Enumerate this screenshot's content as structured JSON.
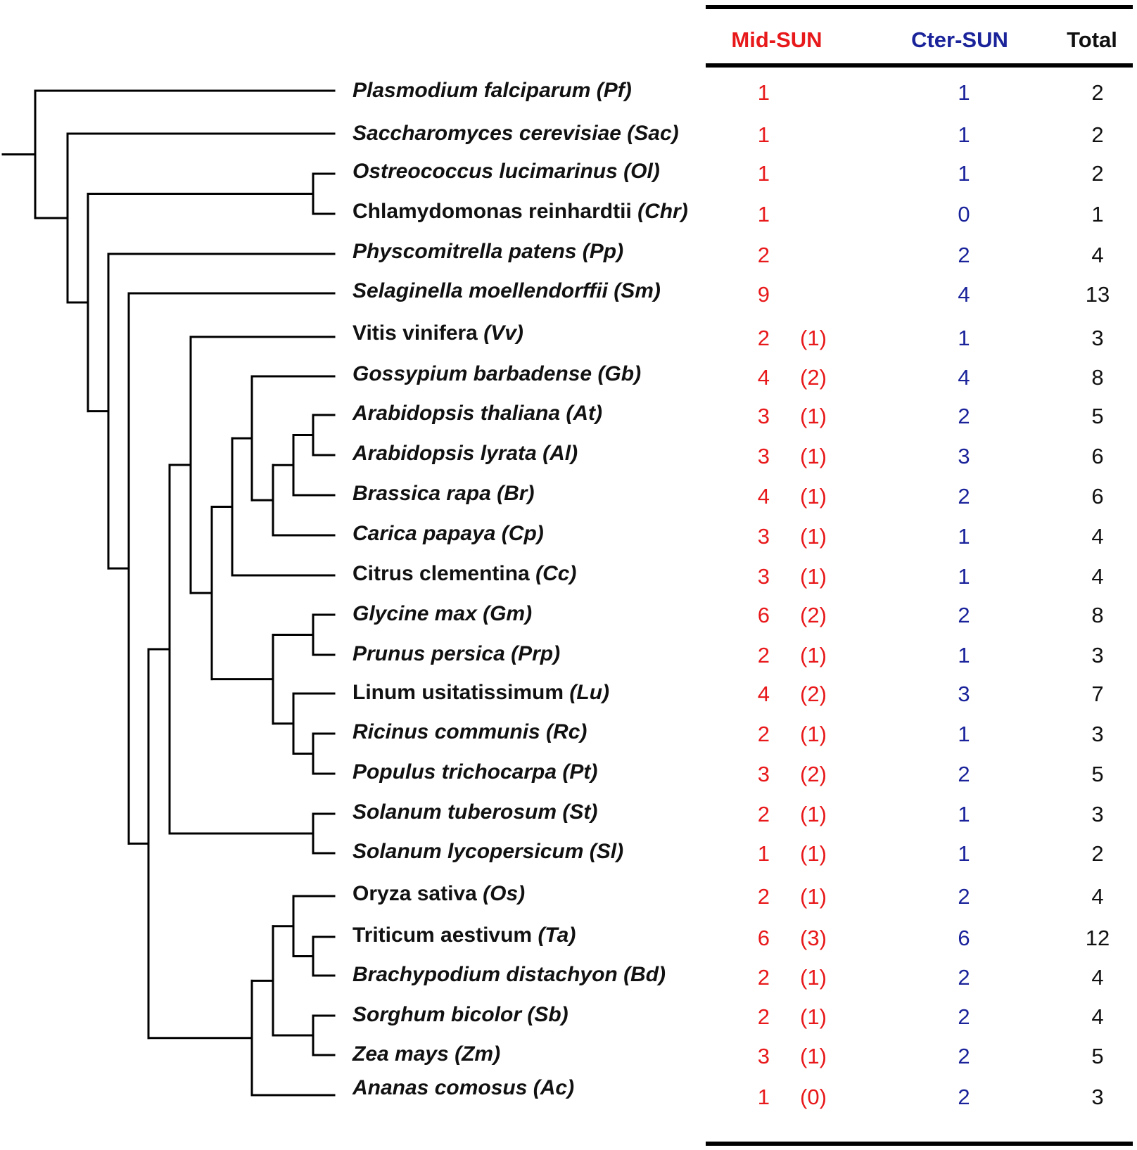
{
  "colors": {
    "mid": "#e8191b",
    "cter": "#1a239a",
    "total": "#111111",
    "tree": "#000000"
  },
  "table": {
    "headers": {
      "mid": "Mid-SUN",
      "cter": "Cter-SUN",
      "total": "Total"
    }
  },
  "rows": [
    {
      "italic": "Plasmodium falciparum (Pf)",
      "mid": "1",
      "cter": "1",
      "total": "2"
    },
    {
      "italic": "Saccharomyces cerevisiae (Sac)",
      "mid": "1",
      "cter": "1",
      "total": "2"
    },
    {
      "italic": "Ostreococcus lucimarinus  (Ol)",
      "mid": "1",
      "cter": "1",
      "total": "2"
    },
    {
      "plain": "Chlamydomonas reinhardtii",
      "italic": "(Chr)",
      "mid": "1",
      "cter": "0",
      "total": "1"
    },
    {
      "italic": "Physcomitrella patens (Pp)",
      "mid": "2",
      "cter": "2",
      "total": "4"
    },
    {
      "italic": "Selaginella moellendorffii (Sm)",
      "mid": "9",
      "cter": "4",
      "total": "13"
    },
    {
      "plain": "Vitis vinifera",
      "italic": "(Vv)",
      "mid": "2（1）",
      "cter": "1",
      "total": "3"
    },
    {
      "italic": "Gossypium barbadense  (Gb)",
      "mid": "4（2）",
      "cter": "4",
      "total": "8"
    },
    {
      "italic": "Arabidopsis thaliana  (At)",
      "mid": "3（1）",
      "cter": "2",
      "total": "5"
    },
    {
      "italic": "Arabidopsis lyrata (Al)",
      "mid": "3（1）",
      "cter": "3",
      "total": "6"
    },
    {
      "italic": "Brassica rapa (Br)",
      "mid": "4（1）",
      "cter": "2",
      "total": "6"
    },
    {
      "italic": "Carica papaya (Cp)",
      "mid": "3（1）",
      "cter": "1",
      "total": "4"
    },
    {
      "plain": "Citrus clementina",
      "italic": "(Cc)",
      "mid": "3（1）",
      "cter": "1",
      "total": "4"
    },
    {
      "italic": "Glycine max (Gm)",
      "mid": "6（2）",
      "cter": "2",
      "total": "8"
    },
    {
      "italic": "Prunus persica (Prp)",
      "mid": "2（1）",
      "cter": "1",
      "total": "3"
    },
    {
      "plain": "Linum usitatissimum",
      "italic": "(Lu)",
      "mid": "4（2）",
      "cter": "3",
      "total": "7"
    },
    {
      "italic": "Ricinus communis (Rc)",
      "mid": "2（1）",
      "cter": "1",
      "total": "3"
    },
    {
      "italic": "Populus trichocarpa (Pt)",
      "mid": "3（2）",
      "cter": "2",
      "total": "5"
    },
    {
      "italic": "Solanum tuberosum  (St)",
      "mid": "2（1）",
      "cter": "1",
      "total": "3"
    },
    {
      "italic": "Solanum lycopersicum  (Sl)",
      "mid": "1（1）",
      "cter": "1",
      "total": "2"
    },
    {
      "plain": "Oryza sativa",
      "italic": "(Os)",
      "mid": "2（1）",
      "cter": "2",
      "total": "4"
    },
    {
      "plain": "Triticum aestivum",
      "italic": "(Ta)",
      "mid": "6（3）",
      "cter": "6",
      "total": "12"
    },
    {
      "italic": "Brachypodium distachyon (Bd)",
      "mid": "2（1）",
      "cter": "2",
      "total": "4"
    },
    {
      "italic": "Sorghum bicolor (Sb)",
      "mid": "2（1）",
      "cter": "2",
      "total": "4"
    },
    {
      "italic": "Zea mays (Zm)",
      "mid": "3（1）",
      "cter": "2",
      "total": "5"
    },
    {
      "italic": "Ananas comosus (Ac)",
      "mid": "1（0）",
      "cter": "2",
      "total": "3"
    }
  ]
}
